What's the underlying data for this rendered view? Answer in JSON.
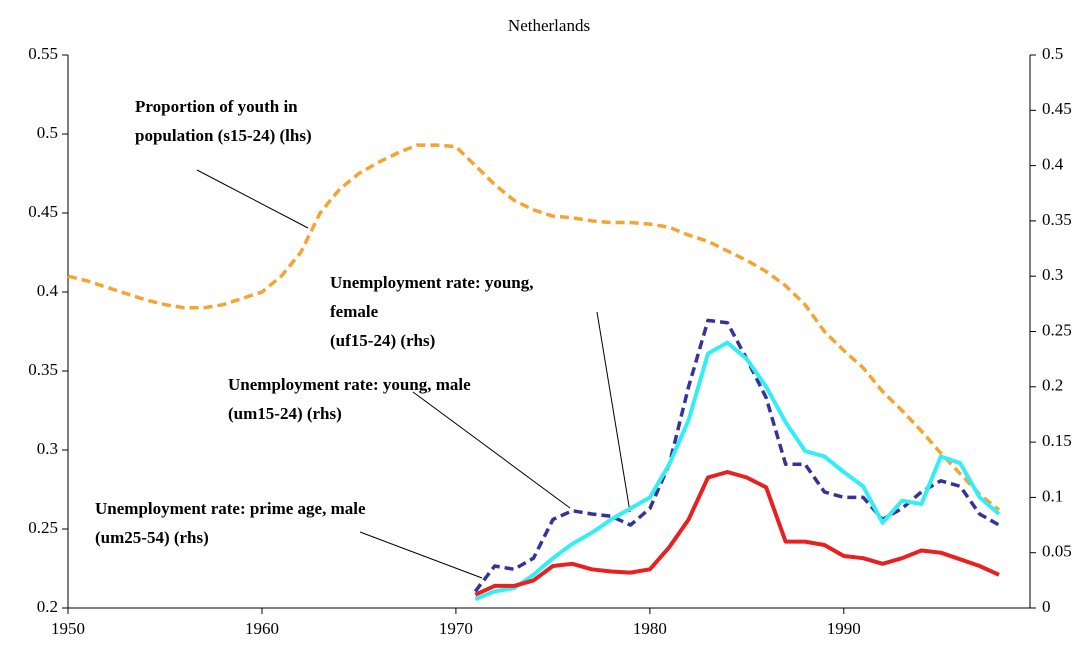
{
  "chart_data": {
    "type": "line",
    "title": "Netherlands",
    "x": [
      1950,
      1951,
      1952,
      1953,
      1954,
      1955,
      1956,
      1957,
      1958,
      1959,
      1960,
      1961,
      1962,
      1963,
      1964,
      1965,
      1966,
      1967,
      1968,
      1969,
      1970,
      1971,
      1972,
      1973,
      1974,
      1975,
      1976,
      1977,
      1978,
      1979,
      1980,
      1981,
      1982,
      1983,
      1984,
      1985,
      1986,
      1987,
      1988,
      1989,
      1990,
      1991,
      1992,
      1993,
      1994,
      1995,
      1996,
      1997,
      1998
    ],
    "xlim": [
      1950,
      1999.6
    ],
    "xticks": [
      1950,
      1960,
      1970,
      1980,
      1990
    ],
    "ylim": [
      0.2,
      0.55
    ],
    "yticks": [
      0.2,
      0.25,
      0.3,
      0.35,
      0.4,
      0.45,
      0.5,
      0.55
    ],
    "y2lim": [
      0,
      0.5
    ],
    "y2ticks": [
      0,
      0.05,
      0.1,
      0.15,
      0.2,
      0.25,
      0.3,
      0.35,
      0.4,
      0.45,
      0.5
    ],
    "series": [
      {
        "name": "Proportion of youth in population (s15-24) (lhs)",
        "color": "#f5a431",
        "dashed": true,
        "axis": "y",
        "values": [
          0.41,
          0.407,
          0.403,
          0.399,
          0.395,
          0.392,
          0.39,
          0.39,
          0.392,
          0.396,
          0.4,
          0.41,
          0.425,
          0.45,
          0.465,
          0.475,
          0.482,
          0.488,
          0.493,
          0.493,
          0.492,
          0.48,
          0.468,
          0.458,
          0.452,
          0.448,
          0.447,
          0.445,
          0.444,
          0.444,
          0.443,
          0.441,
          0.436,
          0.432,
          0.426,
          0.42,
          0.413,
          0.404,
          0.392,
          0.375,
          0.363,
          0.352,
          0.337,
          0.325,
          0.312,
          0.298,
          0.285,
          0.272,
          0.262
        ]
      },
      {
        "name": "Unemployment rate: young, female (uf15-24) (rhs)",
        "color": "#333399",
        "dashed": true,
        "axis": "y2",
        "values": [
          null,
          null,
          null,
          null,
          null,
          null,
          null,
          null,
          null,
          null,
          null,
          null,
          null,
          null,
          null,
          null,
          null,
          null,
          null,
          null,
          null,
          0.015,
          0.038,
          0.035,
          0.045,
          0.08,
          0.088,
          0.085,
          0.083,
          0.075,
          0.09,
          0.13,
          0.2,
          0.26,
          0.258,
          0.225,
          0.19,
          0.13,
          0.13,
          0.105,
          0.1,
          0.1,
          0.08,
          0.09,
          0.105,
          0.115,
          0.11,
          0.085,
          0.075
        ]
      },
      {
        "name": "Unemployment rate: young, male (um15-24) (rhs)",
        "color": "#33eef5",
        "dashed": false,
        "axis": "y2",
        "values": [
          null,
          null,
          null,
          null,
          null,
          null,
          null,
          null,
          null,
          null,
          null,
          null,
          null,
          null,
          null,
          null,
          null,
          null,
          null,
          null,
          null,
          0.008,
          0.015,
          0.018,
          0.03,
          0.045,
          0.058,
          0.068,
          0.08,
          0.09,
          0.1,
          0.13,
          0.17,
          0.23,
          0.24,
          0.225,
          0.2,
          0.168,
          0.142,
          0.137,
          0.123,
          0.11,
          0.077,
          0.097,
          0.094,
          0.137,
          0.131,
          0.1,
          0.085
        ]
      },
      {
        "name": "Unemployment rate: prime age, male (um25-54) (rhs)",
        "color": "#e82020",
        "dashed": false,
        "axis": "y2",
        "values": [
          null,
          null,
          null,
          null,
          null,
          null,
          null,
          null,
          null,
          null,
          null,
          null,
          null,
          null,
          null,
          null,
          null,
          null,
          null,
          null,
          null,
          0.012,
          0.02,
          0.02,
          0.025,
          0.038,
          0.04,
          0.035,
          0.033,
          0.032,
          0.035,
          0.055,
          0.08,
          0.118,
          0.123,
          0.118,
          0.109,
          0.06,
          0.06,
          0.057,
          0.047,
          0.045,
          0.04,
          0.045,
          0.052,
          0.05,
          0.044,
          0.038,
          0.03
        ]
      }
    ],
    "annotations": [
      [
        "Proportion of youth in",
        "population (s15-24) (lhs)"
      ],
      [
        "Unemployment rate: young,",
        "female",
        "(uf15-24) (rhs)"
      ],
      [
        "Unemployment rate: young, male",
        "(um15-24) (rhs)"
      ],
      [
        "Unemployment rate: prime age, male",
        "(um25-54) (rhs)"
      ]
    ]
  }
}
